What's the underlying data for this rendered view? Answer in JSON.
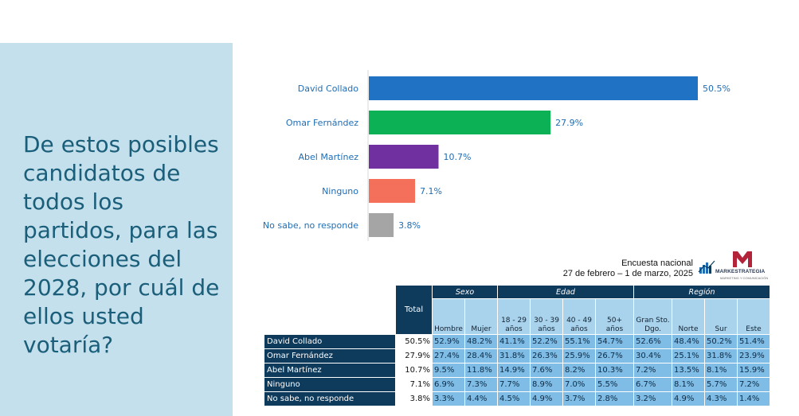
{
  "question": "De estos posibles candidatos de todos los partidos, para las elecciones del 2028, por cuál de ellos usted votaría?",
  "survey": {
    "title": "Encuesta nacional",
    "dates": "27 de febrero – 1 de marzo, 2025"
  },
  "logo": {
    "name": "MARKESTRATEGIA",
    "tagline": "MARKETING Y COMUNICACIÓN",
    "brand_color": "#b3233a"
  },
  "chart_data": {
    "type": "bar",
    "orientation": "horizontal",
    "categories": [
      "David Collado",
      "Omar Fernández",
      "Abel Martínez",
      "Ninguno",
      "No sabe, no responde"
    ],
    "values": [
      50.5,
      27.9,
      10.7,
      7.1,
      3.8
    ],
    "value_labels": [
      "50.5%",
      "27.9%",
      "10.7%",
      "7.1%",
      "3.8%"
    ],
    "colors": [
      "#1f72c4",
      "#0bb154",
      "#7030a0",
      "#f4705a",
      "#a5a5a5"
    ],
    "xlim": [
      0,
      55
    ],
    "grid": false,
    "title": "",
    "xlabel": "",
    "ylabel": ""
  },
  "table": {
    "total_header": "Total",
    "groups": [
      {
        "label": "Sexo",
        "span": 2
      },
      {
        "label": "Edad",
        "span": 4
      },
      {
        "label": "Región",
        "span": 4
      }
    ],
    "columns": [
      "Hombre",
      "Mujer",
      "18 - 29 años",
      "30 - 39 años",
      "40 - 49 años",
      "50+ años",
      "Gran Sto. Dgo.",
      "Norte",
      "Sur",
      "Este"
    ],
    "rows": [
      {
        "label": "David Collado",
        "total": "50.5%",
        "values": [
          "52.9%",
          "48.2%",
          "41.1%",
          "52.2%",
          "55.1%",
          "54.7%",
          "52.6%",
          "48.4%",
          "50.2%",
          "51.4%"
        ]
      },
      {
        "label": "Omar Fernández",
        "total": "27.9%",
        "values": [
          "27.4%",
          "28.4%",
          "31.8%",
          "26.3%",
          "25.9%",
          "26.7%",
          "30.4%",
          "25.1%",
          "31.8%",
          "23.9%"
        ]
      },
      {
        "label": "Abel Martínez",
        "total": "10.7%",
        "values": [
          "9.5%",
          "11.8%",
          "14.9%",
          "7.6%",
          "8.2%",
          "10.3%",
          "7.2%",
          "13.5%",
          "8.1%",
          "15.9%"
        ]
      },
      {
        "label": "Ninguno",
        "total": "7.1%",
        "values": [
          "6.9%",
          "7.3%",
          "7.7%",
          "8.9%",
          "7.0%",
          "5.5%",
          "6.7%",
          "8.1%",
          "5.7%",
          "7.2%"
        ]
      },
      {
        "label": "No sabe, no responde",
        "total": "3.8%",
        "values": [
          "3.3%",
          "4.4%",
          "4.5%",
          "4.9%",
          "3.7%",
          "2.8%",
          "3.2%",
          "4.9%",
          "4.3%",
          "1.4%"
        ]
      }
    ]
  }
}
